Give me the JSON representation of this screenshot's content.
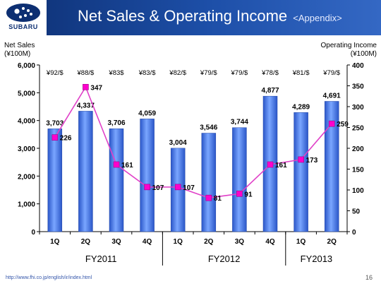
{
  "header": {
    "brand": "SUBARU",
    "title": "Net Sales & Operating Income",
    "subtitle": "<Appendix>"
  },
  "footer": {
    "url": "http://www.fhi.co.jp/english/ir/index.html",
    "page": "16"
  },
  "colors": {
    "header": "#1d4fa8",
    "bar": "#4f7fe0",
    "line": "#e040c8",
    "marker": "#ff00cc"
  },
  "chart_data": {
    "type": "bar",
    "categories": [
      "1Q",
      "2Q",
      "3Q",
      "4Q",
      "1Q",
      "2Q",
      "3Q",
      "4Q",
      "1Q",
      "2Q"
    ],
    "groups": [
      {
        "label": "FY2011",
        "count": 4
      },
      {
        "label": "FY2012",
        "count": 4
      },
      {
        "label": "FY2013",
        "count": 2
      }
    ],
    "exchange_rates": [
      "¥92/$",
      "¥88/$",
      "¥83$",
      "¥83/$",
      "¥82/$",
      "¥79/$",
      "¥79/$",
      "¥78/$",
      "¥81/$",
      "¥79/$"
    ],
    "series": [
      {
        "type": "bar",
        "axis": "left",
        "values": [
          3703,
          4337,
          3706,
          4059,
          3004,
          3546,
          3744,
          4877,
          4289,
          4691
        ],
        "labels": [
          "3,703",
          "4,337",
          "3,706",
          "4,059",
          "3,004",
          "3,546",
          "3,744",
          "4,877",
          "4,289",
          "4,691"
        ]
      },
      {
        "type": "line",
        "axis": "right",
        "values": [
          226,
          347,
          161,
          107,
          107,
          81,
          91,
          161,
          173,
          259
        ],
        "labels": [
          "226",
          "347",
          "161",
          "107",
          "107",
          "81",
          "91",
          "161",
          "173",
          "259"
        ]
      }
    ],
    "ylabel_left": [
      "Net Sales",
      "(¥100M)"
    ],
    "ylabel_right": [
      "Operating Income",
      "(¥100M)"
    ],
    "ylim_left": [
      0,
      6000
    ],
    "ylim_right": [
      0,
      400
    ],
    "yticks_left": [
      "0",
      "1,000",
      "2,000",
      "3,000",
      "4,000",
      "5,000",
      "6,000"
    ],
    "yticks_right": [
      "0",
      "50",
      "100",
      "150",
      "200",
      "250",
      "300",
      "350",
      "400"
    ],
    "grid": false,
    "legend": "none"
  }
}
